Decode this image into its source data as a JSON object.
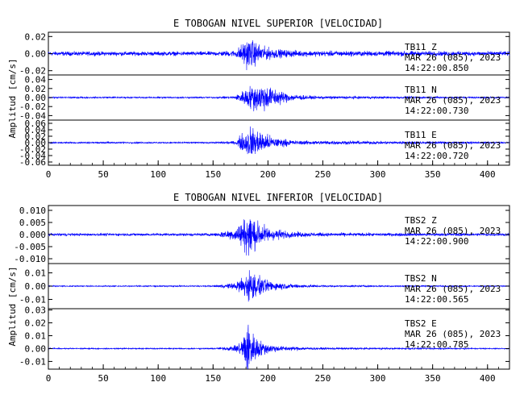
{
  "figure": {
    "background": "#ffffff",
    "trace_color": "#0000ff",
    "axis_color": "#000000"
  },
  "chart_data": [
    {
      "type": "line",
      "title": "E TOBOGAN NIVEL SUPERIOR [VELOCIDAD]",
      "ylabel": "Amplitud [cm/s]",
      "xlim": [
        0,
        420
      ],
      "x_ticks": [
        "0",
        "50",
        "100",
        "150",
        "200",
        "250",
        "300",
        "350",
        "400"
      ],
      "series": [
        {
          "name": "TB11 Z",
          "station": "TB11",
          "component": "Z",
          "date": "MAR 26 (085), 2023",
          "time": "14:22:00.850",
          "ylim": [
            -0.025,
            0.025
          ],
          "y_ticks": [
            "0.02",
            "0.00",
            "-0.02"
          ],
          "envelope": [
            [
              0,
              0.003
            ],
            [
              150,
              0.003
            ],
            [
              170,
              0.0045
            ],
            [
              175,
              0.012
            ],
            [
              182,
              0.022
            ],
            [
              188,
              0.017
            ],
            [
              196,
              0.01
            ],
            [
              210,
              0.006
            ],
            [
              230,
              0.004
            ],
            [
              420,
              0.003
            ]
          ]
        },
        {
          "name": "TB11 N",
          "station": "TB11",
          "component": "N",
          "date": "MAR 26 (085), 2023",
          "time": "14:22:00.730",
          "ylim": [
            -0.05,
            0.05
          ],
          "y_ticks": [
            "0.04",
            "0.02",
            "0.00",
            "-0.02",
            "-0.04"
          ],
          "envelope": [
            [
              0,
              0.002
            ],
            [
              150,
              0.002
            ],
            [
              170,
              0.004
            ],
            [
              178,
              0.02
            ],
            [
              186,
              0.035
            ],
            [
              195,
              0.038
            ],
            [
              205,
              0.025
            ],
            [
              220,
              0.01
            ],
            [
              240,
              0.004
            ],
            [
              420,
              0.002
            ]
          ]
        },
        {
          "name": "TB11 E",
          "station": "TB11",
          "component": "E",
          "date": "MAR 26 (085), 2023",
          "time": "14:22:00.720",
          "ylim": [
            -0.07,
            0.07
          ],
          "y_ticks": [
            "0.06",
            "0.04",
            "0.02",
            "0.00",
            "-0.02",
            "-0.04",
            "-0.06"
          ],
          "envelope": [
            [
              0,
              0.003
            ],
            [
              150,
              0.003
            ],
            [
              170,
              0.006
            ],
            [
              178,
              0.04
            ],
            [
              184,
              0.06
            ],
            [
              192,
              0.045
            ],
            [
              205,
              0.02
            ],
            [
              225,
              0.008
            ],
            [
              420,
              0.003
            ]
          ]
        }
      ]
    },
    {
      "type": "line",
      "title": "E TOBOGAN NIVEL INFERIOR [VELOCIDAD]",
      "ylabel": "Amplitud [cm/s]",
      "xlim": [
        0,
        420
      ],
      "x_ticks": [
        "0",
        "50",
        "100",
        "150",
        "200",
        "250",
        "300",
        "350",
        "400"
      ],
      "series": [
        {
          "name": "TBS2 Z",
          "station": "TBS2",
          "component": "Z",
          "date": "MAR 26 (085), 2023",
          "time": "14:22:00.900",
          "ylim": [
            -0.012,
            0.012
          ],
          "y_ticks": [
            "0.010",
            "0.005",
            "0.000",
            "-0.005",
            "-0.010"
          ],
          "envelope": [
            [
              0,
              0.0006
            ],
            [
              150,
              0.0007
            ],
            [
              170,
              0.003
            ],
            [
              176,
              0.007
            ],
            [
              183,
              0.011
            ],
            [
              190,
              0.007
            ],
            [
              200,
              0.0035
            ],
            [
              220,
              0.0015
            ],
            [
              250,
              0.0009
            ],
            [
              420,
              0.0006
            ]
          ]
        },
        {
          "name": "TBS2 N",
          "station": "TBS2",
          "component": "N",
          "date": "MAR 26 (085), 2023",
          "time": "14:22:00.565",
          "ylim": [
            -0.017,
            0.017
          ],
          "y_ticks": [
            "0.01",
            "0.00",
            "-0.01"
          ],
          "envelope": [
            [
              0,
              0.0005
            ],
            [
              150,
              0.0006
            ],
            [
              170,
              0.003
            ],
            [
              176,
              0.008
            ],
            [
              183,
              0.015
            ],
            [
              190,
              0.01
            ],
            [
              200,
              0.005
            ],
            [
              220,
              0.002
            ],
            [
              250,
              0.0008
            ],
            [
              420,
              0.0005
            ]
          ]
        },
        {
          "name": "TBS2 E",
          "station": "TBS2",
          "component": "E",
          "date": "MAR 26 (085), 2023",
          "time": "14:22:00.785",
          "ylim": [
            -0.016,
            0.031
          ],
          "y_ticks": [
            "0.03",
            "0.02",
            "0.01",
            "0.00",
            "-0.01"
          ],
          "envelope": [
            [
              0,
              0.0005
            ],
            [
              150,
              0.0006
            ],
            [
              170,
              0.0025
            ],
            [
              176,
              0.008
            ],
            [
              181,
              0.027
            ],
            [
              186,
              0.015
            ],
            [
              195,
              0.006
            ],
            [
              210,
              0.0025
            ],
            [
              240,
              0.001
            ],
            [
              420,
              0.0005
            ]
          ]
        }
      ]
    }
  ]
}
